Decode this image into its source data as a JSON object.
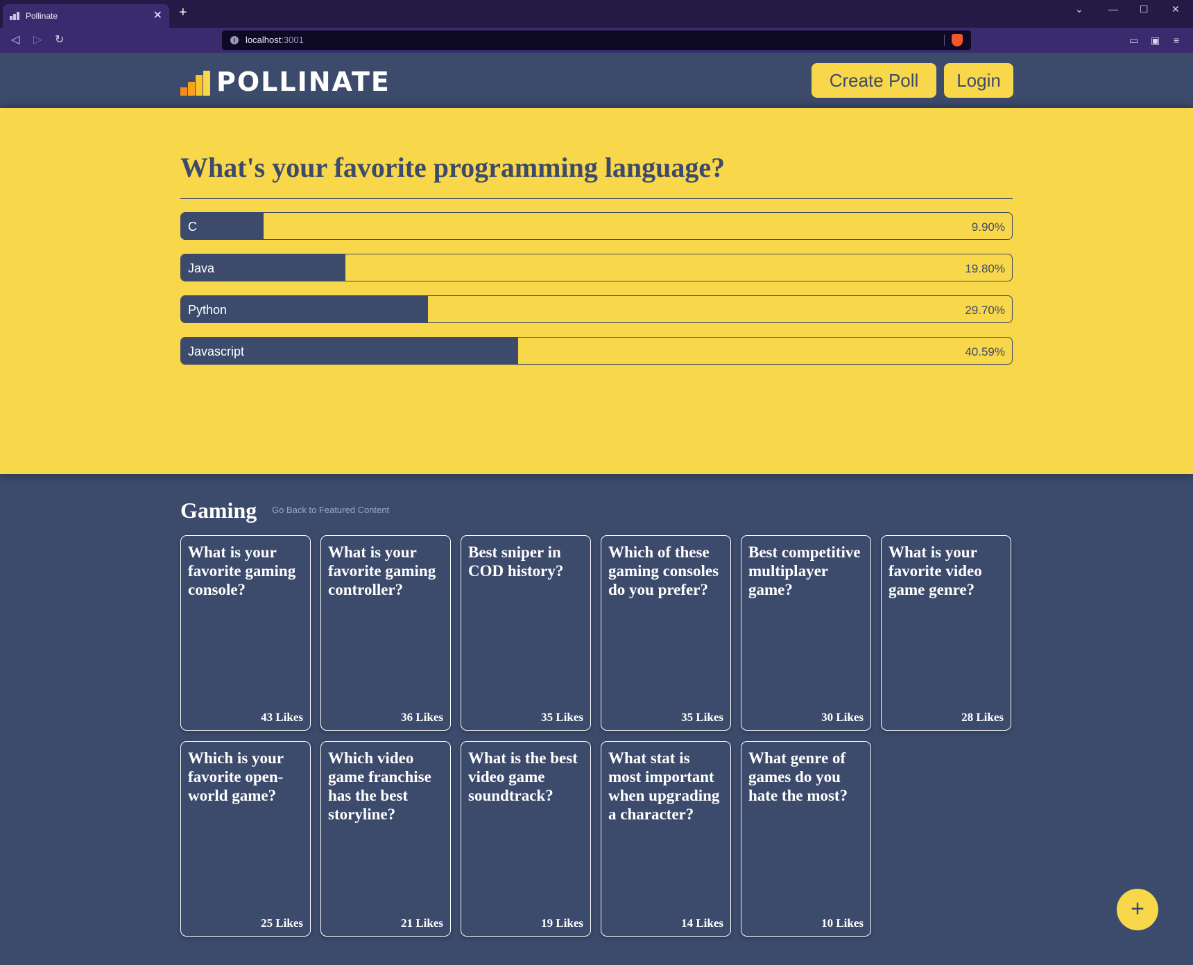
{
  "browser": {
    "tab_title": "Pollinate",
    "tab_close": "✕",
    "new_tab": "+",
    "url_host": "localhost",
    "url_port": ":3001"
  },
  "header": {
    "logo_text": "POLLINATE",
    "create_poll_label": "Create Poll",
    "login_label": "Login"
  },
  "featured_poll": {
    "question": "What's your favorite programming language?",
    "options": [
      {
        "label": "C",
        "percent_text": "9.90%",
        "percent": 9.9
      },
      {
        "label": "Java",
        "percent_text": "19.80%",
        "percent": 19.8
      },
      {
        "label": "Python",
        "percent_text": "29.70%",
        "percent": 29.7
      },
      {
        "label": "Javascript",
        "percent_text": "40.59%",
        "percent": 40.59
      }
    ]
  },
  "category": {
    "title": "Gaming",
    "back_link": "Go Back to Featured Content",
    "polls": [
      {
        "question": "What is your favorite gaming console?",
        "likes": "43 Likes"
      },
      {
        "question": "What is your favorite gaming controller?",
        "likes": "36 Likes"
      },
      {
        "question": "Best sniper in COD history?",
        "likes": "35 Likes"
      },
      {
        "question": "Which of these gaming consoles do you prefer?",
        "likes": "35 Likes"
      },
      {
        "question": "Best competitive multiplayer game?",
        "likes": "30 Likes"
      },
      {
        "question": "What is your favorite video game genre?",
        "likes": "28 Likes"
      },
      {
        "question": "Which is your favorite open-world game?",
        "likes": "25 Likes"
      },
      {
        "question": "Which video game franchise has the best storyline?",
        "likes": "21 Likes"
      },
      {
        "question": "What is the best video game soundtrack?",
        "likes": "19 Likes"
      },
      {
        "question": "What stat is most important when upgrading a character?",
        "likes": "14 Likes"
      },
      {
        "question": "What genre of games do you hate the most?",
        "likes": "10 Likes"
      }
    ]
  },
  "fab_label": "+",
  "colors": {
    "accent_yellow": "#f8d74a",
    "navy": "#3c4a6b",
    "logo_orange": "#f7a21c"
  }
}
